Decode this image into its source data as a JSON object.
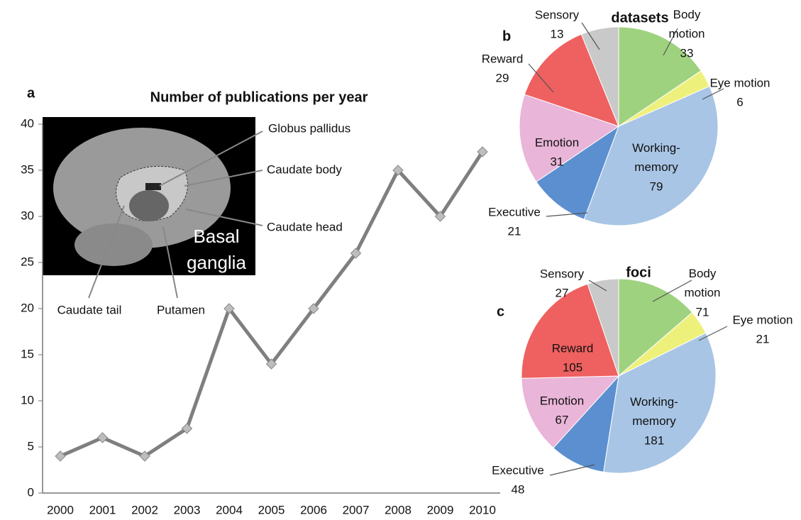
{
  "chart_data": [
    {
      "type": "line",
      "panel": "a",
      "title": "Number of publications per year",
      "categories": [
        "2000",
        "2001",
        "2002",
        "2003",
        "2004",
        "2005",
        "2006",
        "2007",
        "2008",
        "2009",
        "2010"
      ],
      "values": [
        4,
        6,
        4,
        7,
        20,
        14,
        20,
        26,
        35,
        30,
        37
      ],
      "color": "#7f7f7f",
      "ylim": [
        0,
        40
      ],
      "yticks": [
        0,
        5,
        10,
        15,
        20,
        25,
        30,
        35,
        40
      ],
      "annotations": [
        "Globus pallidus",
        "Caudate body",
        "Caudate head",
        "Caudate tail",
        "Putamen",
        "Basal",
        "ganglia"
      ]
    },
    {
      "type": "pie",
      "panel": "b",
      "title": "datasets",
      "categories": [
        "Body motion",
        "Eye motion",
        "Working-memory",
        "Executive",
        "Emotion",
        "Reward",
        "Sensory"
      ],
      "values": [
        33,
        6,
        79,
        21,
        31,
        29,
        13
      ],
      "colors": [
        "#9fd27f",
        "#eef07c",
        "#a8c5e5",
        "#5b8fcf",
        "#e9b5d8",
        "#ef6060",
        "#c9c9c9"
      ]
    },
    {
      "type": "pie",
      "panel": "c",
      "title": "foci",
      "categories": [
        "Body motion",
        "Eye motion",
        "Working-memory",
        "Executive",
        "Emotion",
        "Reward",
        "Sensory"
      ],
      "values": [
        71,
        21,
        181,
        48,
        67,
        105,
        27
      ],
      "colors": [
        "#9fd27f",
        "#eef07c",
        "#a8c5e5",
        "#5b8fcf",
        "#e9b5d8",
        "#ef6060",
        "#c9c9c9"
      ]
    }
  ]
}
